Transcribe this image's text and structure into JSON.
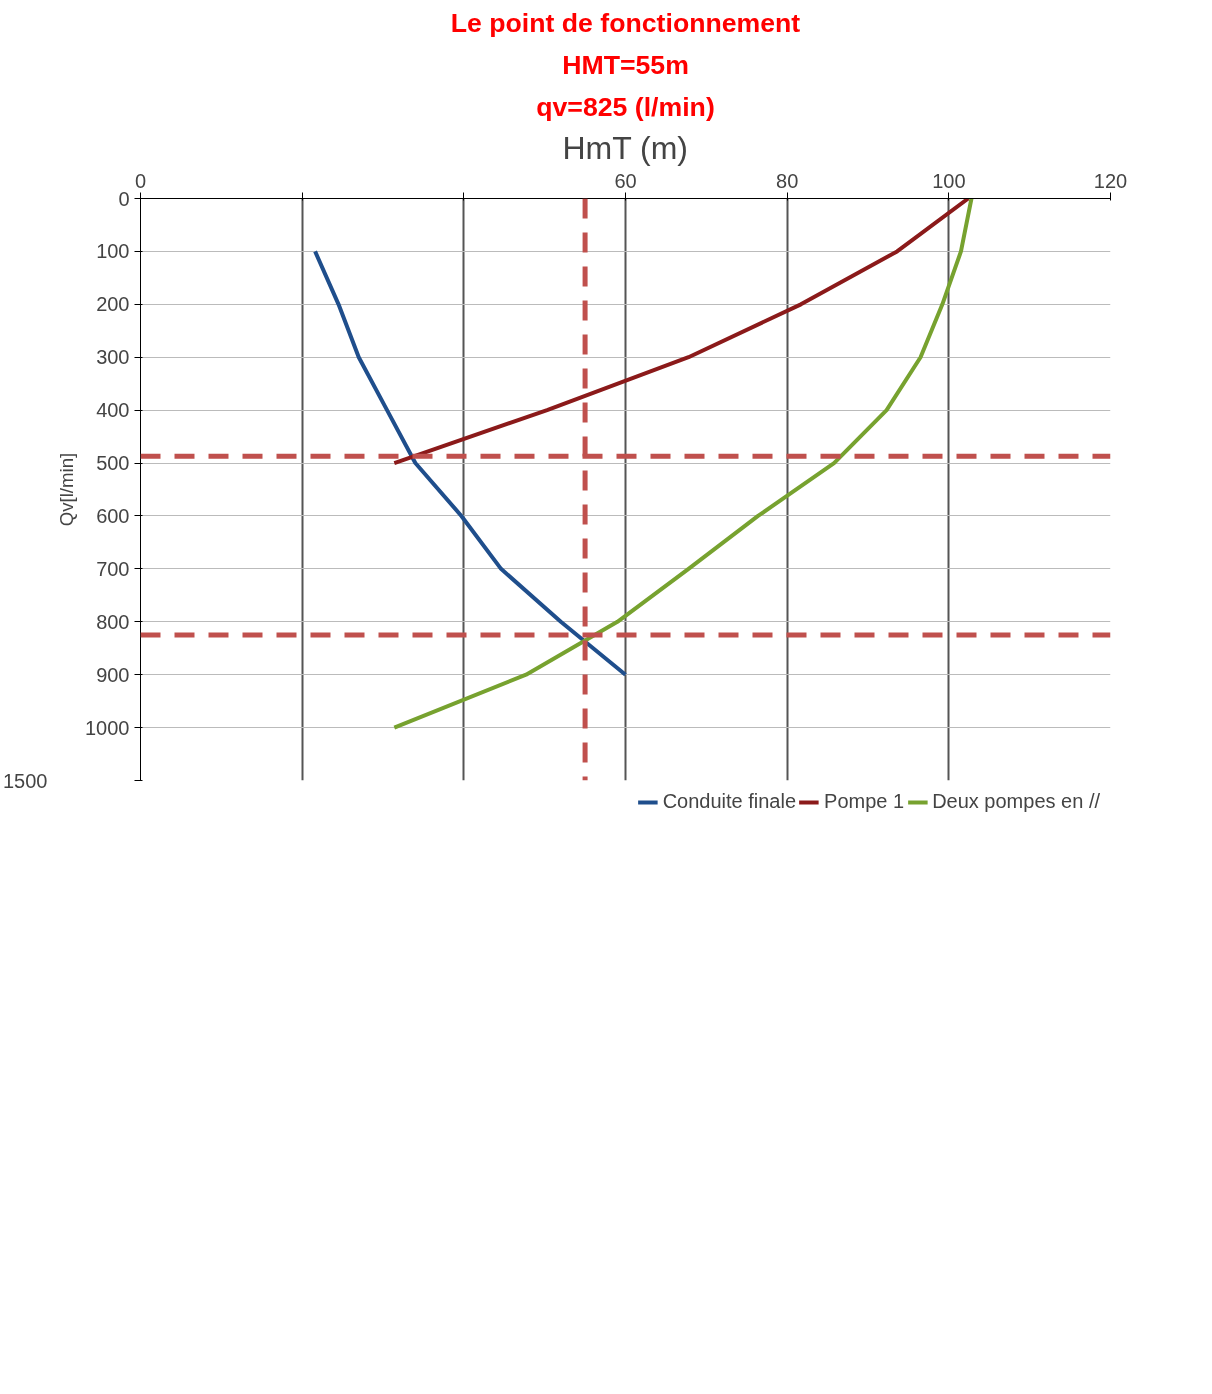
{
  "chart_data": {
    "type": "line",
    "xlabel": "HmT (m)",
    "ylabel": "Qv[l/min]",
    "annotations": [
      "Le point de fonctionnement",
      "HMT=55m",
      "qv=825 (l/min)",
      "1500"
    ],
    "xlim": [
      0,
      120
    ],
    "xticks": [
      0,
      {
        "value": 20,
        "label": null
      },
      {
        "value": 40,
        "label": null
      },
      60,
      80,
      100,
      120
    ],
    "ylim": [
      1100,
      0
    ],
    "yticks": [
      0,
      100,
      200,
      300,
      400,
      500,
      600,
      700,
      800,
      900,
      1000,
      {
        "value": 1100,
        "label": null
      }
    ],
    "grid": true,
    "legend": "bottom",
    "line_style": "solid",
    "marker": "none",
    "series": [
      {
        "name": "Conduite finale",
        "color": "#1f4e8c",
        "x": [
          21.6,
          24.5,
          27,
          30.5,
          34,
          39.7,
          44.6,
          52,
          60
        ],
        "values": [
          100,
          200,
          300,
          400,
          500,
          600,
          700,
          800,
          900
        ]
      },
      {
        "name": "Pompe 1",
        "color": "#8b1a1a",
        "x": [
          102.4,
          93.6,
          81.7,
          67.8,
          50.3,
          31.4
        ],
        "values": [
          0,
          100,
          200,
          300,
          400,
          500
        ]
      },
      {
        "name": "Deux pompes en //",
        "color": "#77a22f",
        "x": [
          102.8,
          101.5,
          99.2,
          96.5,
          92.3,
          85.8,
          76.4,
          67.8,
          59,
          47.7,
          31.4
        ],
        "values": [
          0,
          100,
          200,
          300,
          400,
          500,
          600,
          700,
          800,
          900,
          1000
        ]
      }
    ],
    "ref_lines": [
      {
        "axis": "x",
        "value": 55,
        "color": "#c0504d",
        "line_style": "dashed"
      },
      {
        "axis": "y",
        "value": 487,
        "color": "#c0504d",
        "line_style": "dashed"
      },
      {
        "axis": "y",
        "value": 825,
        "color": "#c0504d",
        "line_style": "dashed"
      }
    ]
  }
}
